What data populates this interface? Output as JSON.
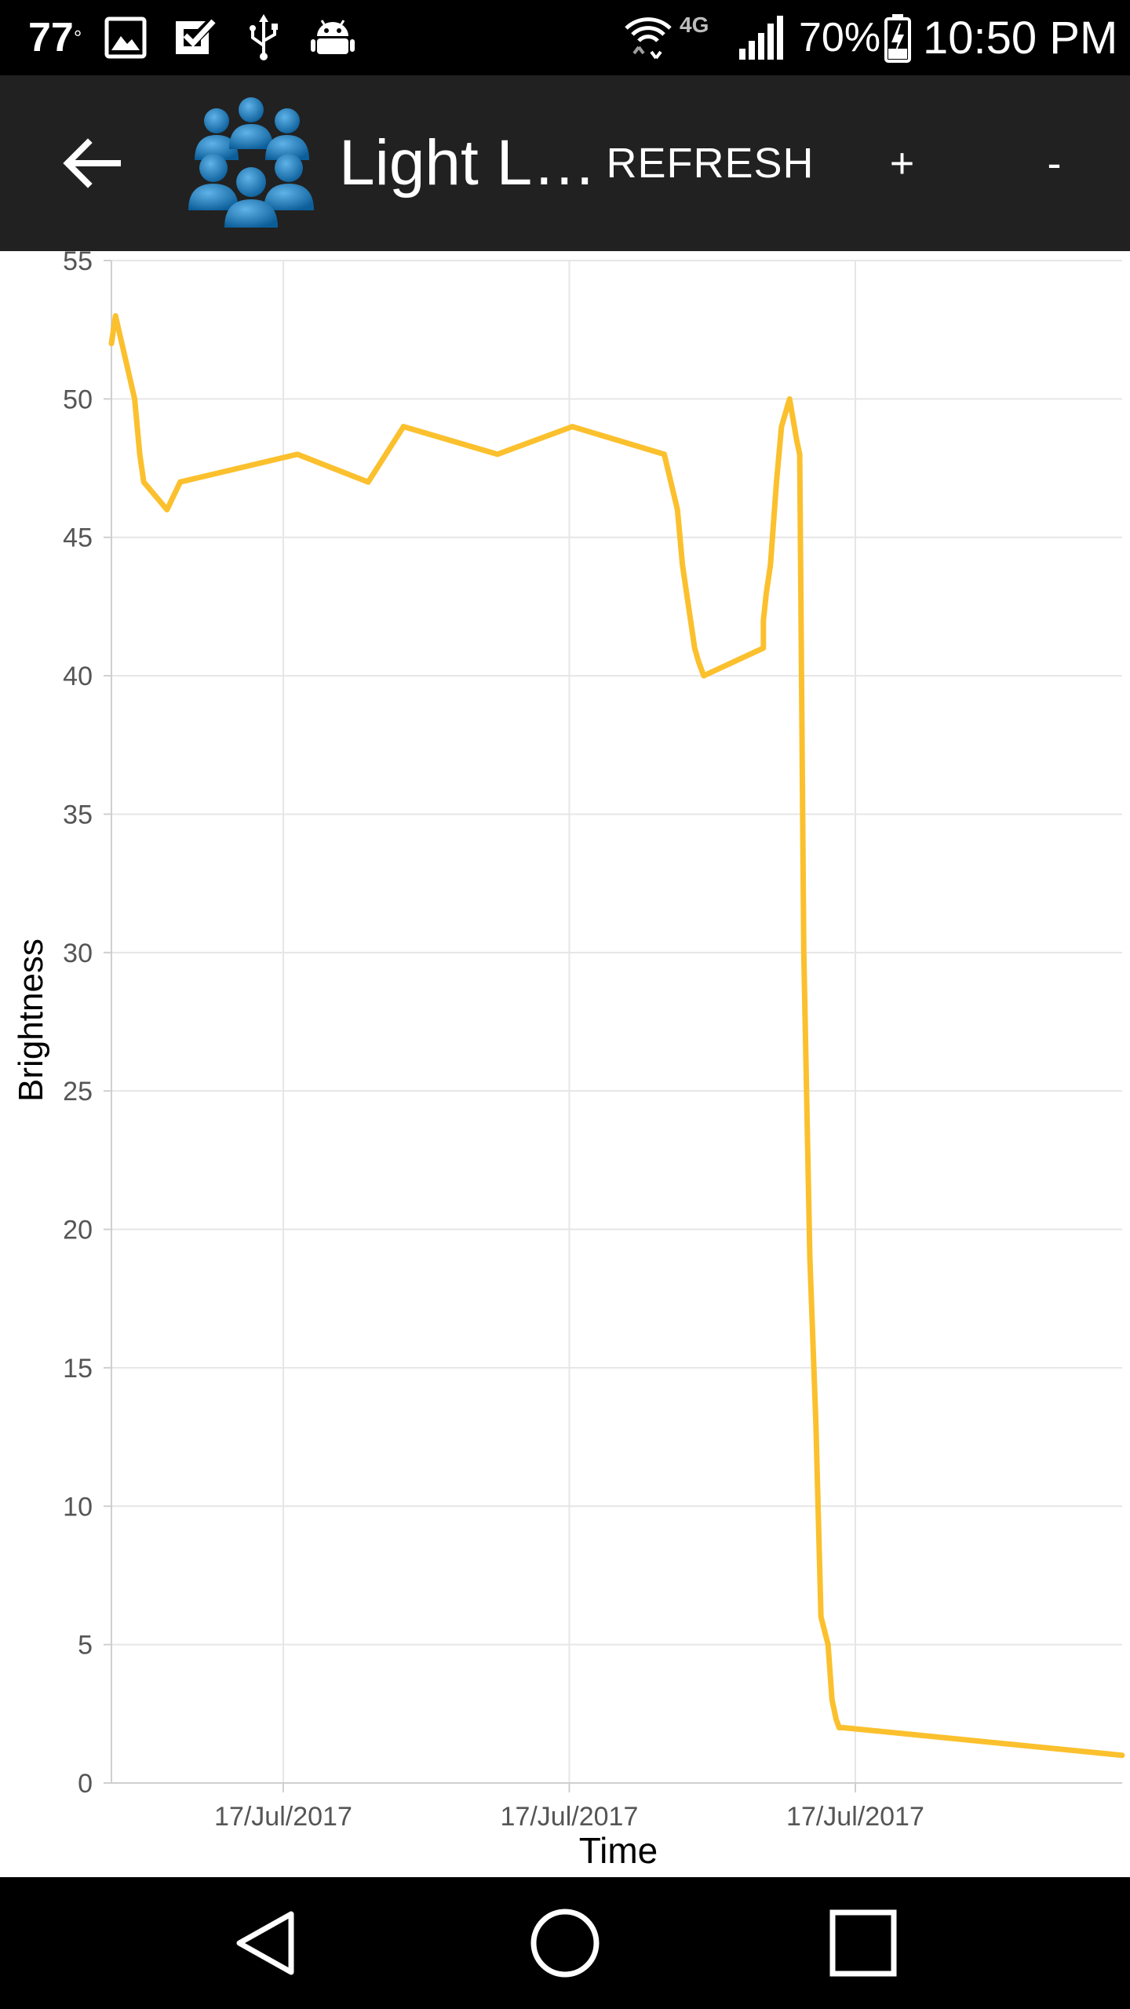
{
  "status_bar": {
    "temperature": "77",
    "temperature_unit": "°",
    "network_label": "4G",
    "battery_percent": "70%",
    "time": "10:50 PM",
    "icons": [
      "image-icon",
      "checkmark-icon",
      "usb-icon",
      "android-icon",
      "wifi-icon",
      "signal-icon",
      "battery-charging-icon"
    ]
  },
  "app_bar": {
    "title": "Light L…",
    "actions": {
      "refresh": "REFRESH",
      "plus": "+",
      "minus": "-"
    },
    "icons": [
      "back-arrow-icon",
      "app-logo-people-icon"
    ]
  },
  "chart_data": {
    "type": "line",
    "title": "",
    "xlabel": "Time",
    "ylabel": "Brightness",
    "ylim": [
      0,
      55
    ],
    "yticks": [
      "0",
      "5",
      "10",
      "15",
      "20",
      "25",
      "30",
      "35",
      "40",
      "45",
      "50",
      "55"
    ],
    "xlim": [
      0,
      100
    ],
    "xticks": [
      {
        "x": 17,
        "label": "17/Jul/2017"
      },
      {
        "x": 45.3,
        "label": "17/Jul/2017"
      },
      {
        "x": 73.6,
        "label": "17/Jul/2017"
      }
    ],
    "grid": true,
    "line_color": "#FBC02D",
    "series": [
      {
        "x": [
          0,
          0.4,
          2.3,
          2.8,
          3.2,
          5.5,
          6.8,
          18.4,
          25.4,
          28.9,
          38.2,
          45.6,
          54.7,
          56.0,
          56.5,
          57.7,
          58.1,
          58.6,
          64.5,
          64.5,
          64.8,
          65.2,
          65.8,
          66.3,
          67.1,
          67.8,
          68.1,
          68.5,
          69.1,
          69.7,
          70.2,
          70.9,
          71.3,
          71.7,
          72.0,
          72.4,
          100
        ],
        "y": [
          52,
          53,
          50,
          48,
          47,
          46,
          47,
          48,
          47,
          49,
          48,
          49,
          48,
          46,
          44,
          41,
          40.5,
          40,
          41,
          42,
          43,
          44,
          47,
          49,
          50,
          48.5,
          48,
          30,
          19,
          13,
          6,
          5,
          3,
          2.3,
          2,
          2,
          1
        ]
      }
    ]
  },
  "nav_bar": {
    "icons": [
      "nav-back-icon",
      "nav-home-icon",
      "nav-recents-icon"
    ]
  }
}
